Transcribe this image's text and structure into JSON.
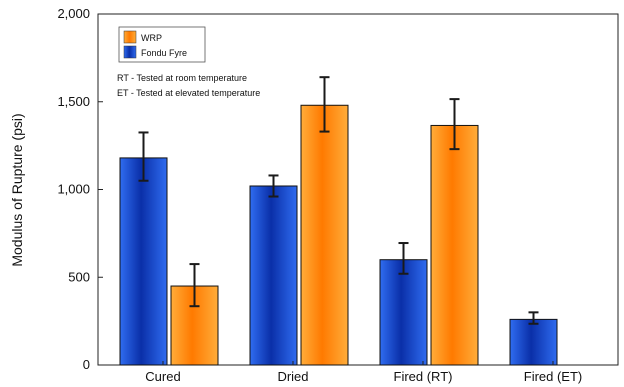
{
  "chart_data": {
    "type": "bar",
    "ylabel": "Modulus of Rupture (psi)",
    "xlabel": "",
    "ylim": [
      0,
      2000
    ],
    "yticks": [
      {
        "value": 0,
        "label": "0"
      },
      {
        "value": 500,
        "label": "500"
      },
      {
        "value": 1000,
        "label": "1,000"
      },
      {
        "value": 1500,
        "label": "1,500"
      },
      {
        "value": 2000,
        "label": "2,000"
      }
    ],
    "categories": [
      "Cured",
      "Dried",
      "Fired (RT)",
      "Fired (ET)"
    ],
    "series": [
      {
        "name": "Fondu Fyre",
        "color": "#1a3fbf",
        "values": [
          1180,
          1020,
          600,
          260
        ],
        "err_low": [
          1050,
          960,
          520,
          235
        ],
        "err_high": [
          1325,
          1080,
          695,
          300
        ]
      },
      {
        "name": "WRP",
        "color": "#ff8a00",
        "values": [
          450,
          1480,
          1365,
          null
        ],
        "err_low": [
          335,
          1330,
          1230,
          null
        ],
        "err_high": [
          575,
          1640,
          1515,
          null
        ]
      }
    ],
    "legend": {
      "placement": "top-left",
      "entries": [
        "WRP",
        "Fondu Fyre"
      ]
    },
    "notes": [
      "RT - Tested at room temperature",
      "ET - Tested at elevated temperature"
    ],
    "grid": false
  }
}
